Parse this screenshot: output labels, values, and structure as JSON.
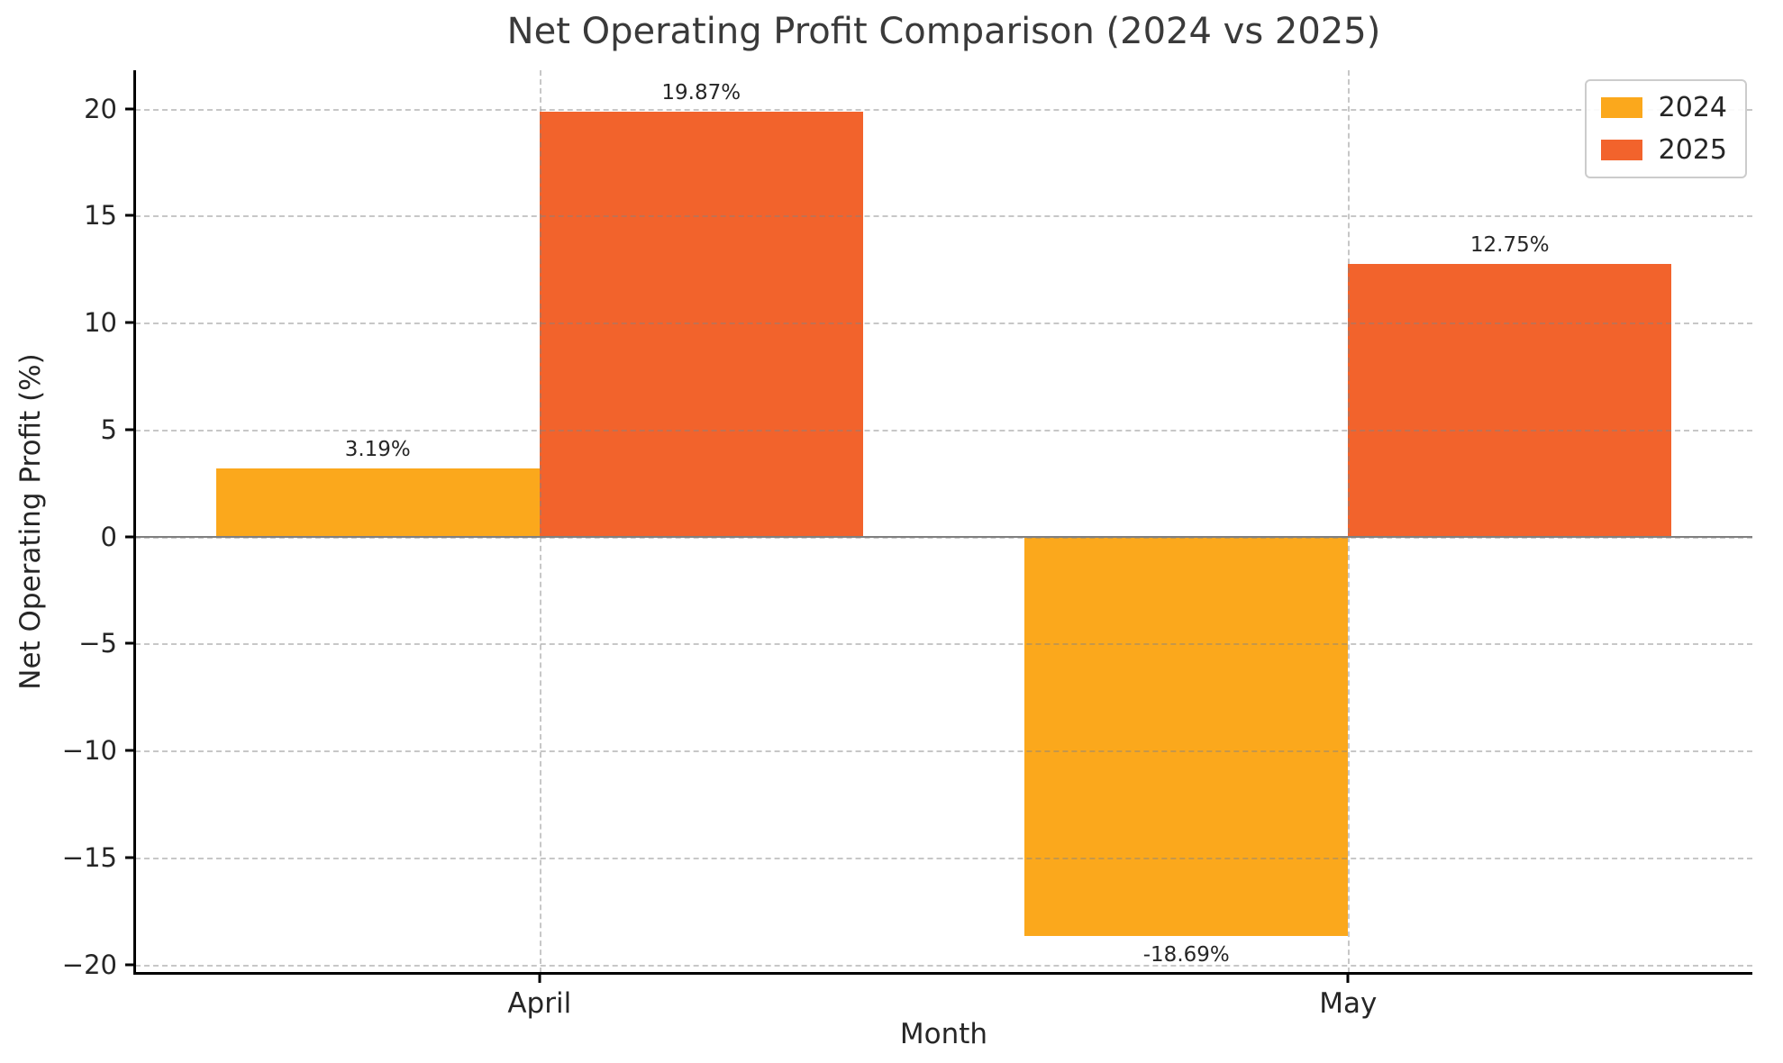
{
  "chart_data": {
    "type": "bar",
    "title": "Net Operating Profit Comparison (2024 vs 2025)",
    "xlabel": "Month",
    "ylabel": "Net Operating Profit (%)",
    "categories": [
      "April",
      "May"
    ],
    "series": [
      {
        "name": "2024",
        "color": "#FBA81C",
        "values": [
          3.19,
          -18.69
        ],
        "labels": [
          "3.19%",
          "-18.69%"
        ]
      },
      {
        "name": "2025",
        "color": "#F2632C",
        "values": [
          19.87,
          12.75
        ],
        "labels": [
          "19.87%",
          "12.75%"
        ]
      }
    ],
    "ylim": [
      -20.4,
      21.8
    ],
    "yticks": [
      {
        "value": -20,
        "label": "−20"
      },
      {
        "value": -15,
        "label": "−15"
      },
      {
        "value": -10,
        "label": "−10"
      },
      {
        "value": -5,
        "label": "−5"
      },
      {
        "value": 0,
        "label": "0"
      },
      {
        "value": 5,
        "label": "5"
      },
      {
        "value": 10,
        "label": "10"
      },
      {
        "value": 15,
        "label": "15"
      },
      {
        "value": 20,
        "label": "20"
      }
    ],
    "bar_width_frac": 0.4,
    "grid": {
      "style": "dashed",
      "horizontal": true,
      "vertical": true
    },
    "zero_line": true,
    "legend": {
      "position": "upper right"
    }
  }
}
